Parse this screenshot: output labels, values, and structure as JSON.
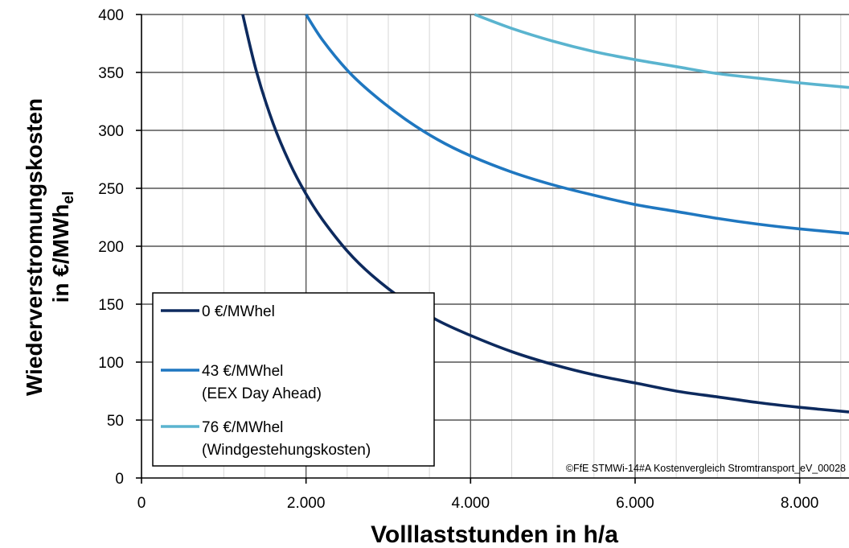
{
  "chart_data": {
    "type": "line",
    "xlabel": "Volllaststunden in h/a",
    "ylabel_main": "Wiederverstromungskosten",
    "ylabel_prefix": "in €/MWh",
    "ylabel_sub": "el",
    "xlim": [
      0,
      8600
    ],
    "ylim": [
      0,
      400
    ],
    "x_ticks": [
      0,
      2000,
      4000,
      6000,
      8000
    ],
    "x_tick_labels": [
      "0",
      "2.000",
      "4.000",
      "6.000",
      "8.000"
    ],
    "y_ticks": [
      0,
      50,
      100,
      150,
      200,
      250,
      300,
      350,
      400
    ],
    "y_tick_labels": [
      "0",
      "50",
      "100",
      "150",
      "200",
      "250",
      "300",
      "350",
      "400"
    ],
    "grid": true,
    "legend_position": "bottom-left",
    "copyright": "©FfE STMWi-14#A Kostenvergleich Stromtransport_eV_00028",
    "series": [
      {
        "name": "0 €/MWhel",
        "legend_lines": [
          "0 €/MWhel"
        ],
        "color": "#0d2a5e",
        "x": [
          1230,
          1400,
          1600,
          1800,
          2000,
          2200,
          2500,
          2800,
          3200,
          3600,
          4000,
          4500,
          5000,
          5500,
          6000,
          6500,
          7000,
          7500,
          8000,
          8600
        ],
        "y": [
          400,
          350,
          306,
          272,
          245,
          223,
          196,
          175,
          153,
          136,
          123,
          109,
          98,
          89,
          82,
          75,
          70,
          65,
          61,
          57
        ]
      },
      {
        "name": "43 €/MWhel (EEX Day Ahead)",
        "legend_lines": [
          "43 €/MWhel",
          "(EEX Day Ahead)"
        ],
        "color": "#1f77c0",
        "x": [
          2000,
          2200,
          2500,
          2800,
          3200,
          3600,
          4000,
          4500,
          5000,
          5500,
          6000,
          6500,
          7000,
          7500,
          8000,
          8600
        ],
        "y": [
          400,
          378,
          352,
          332,
          310,
          292,
          278,
          264,
          253,
          244,
          236,
          230,
          224,
          219,
          215,
          211
        ]
      },
      {
        "name": "76 €/MWhel (Windgestehungskosten)",
        "legend_lines": [
          "76 €/MWhel",
          "(Windgestehungskosten)"
        ],
        "color": "#5ab4cf",
        "x": [
          4050,
          4500,
          5000,
          5500,
          6000,
          6500,
          7000,
          7500,
          8000,
          8600
        ],
        "y": [
          400,
          388,
          377,
          368,
          361,
          355,
          349,
          345,
          341,
          337
        ]
      }
    ]
  }
}
